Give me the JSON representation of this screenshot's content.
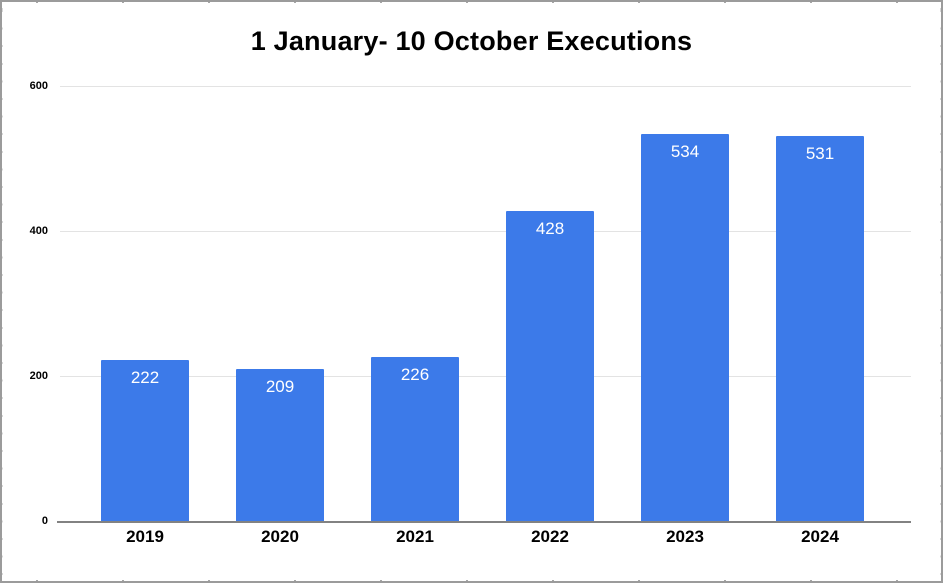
{
  "chart_data": {
    "type": "bar",
    "title": "1 January- 10 October Executions",
    "categories": [
      "2019",
      "2020",
      "2021",
      "2022",
      "2023",
      "2024"
    ],
    "values": [
      222,
      209,
      226,
      428,
      534,
      531
    ],
    "xlabel": "",
    "ylabel": "",
    "ylim": [
      0,
      600
    ],
    "yticks": [
      0,
      200,
      400,
      600
    ],
    "grid": true,
    "legend_position": "none",
    "bar_color": "#3c7ae9",
    "value_label_color": "#ffffff",
    "title_color": "#000000",
    "tick_label_color": "#000000",
    "gridline_color": "#e3e3e3",
    "axis_line_color": "#828282"
  }
}
